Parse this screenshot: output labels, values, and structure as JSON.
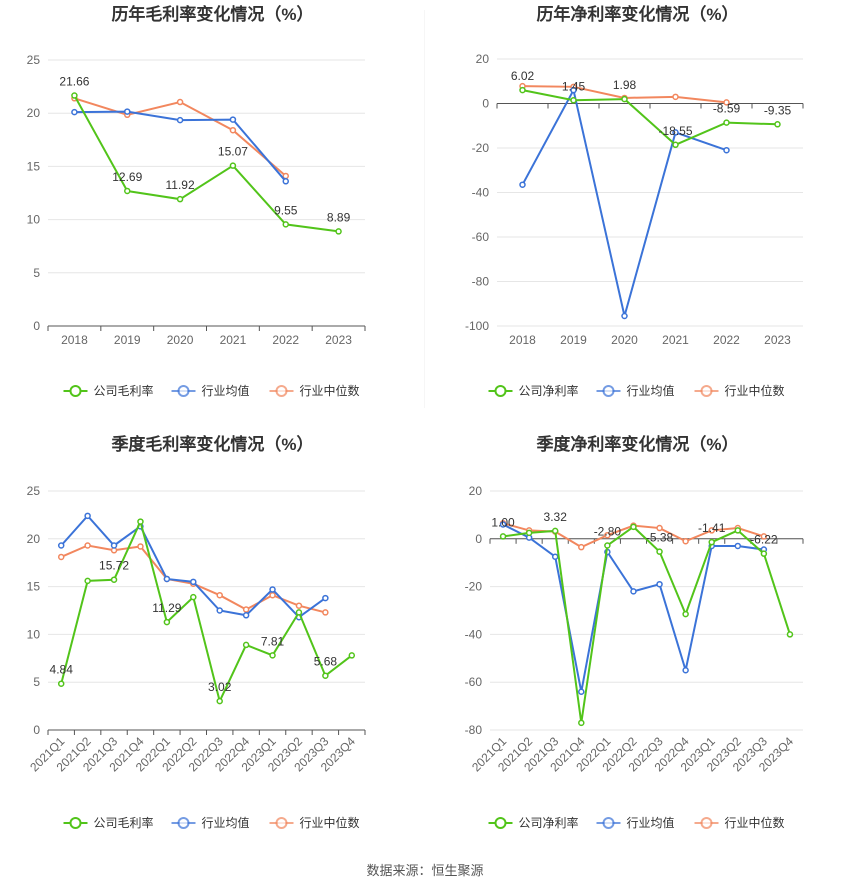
{
  "source": "数据来源：恒生聚源",
  "legend_colors": {
    "company": "#52c41a",
    "avg": "#3b73d8",
    "median": "#f2875e"
  },
  "chart_data": [
    {
      "type": "line",
      "title": "历年毛利率变化情况（%）",
      "categories": [
        "2018",
        "2019",
        "2020",
        "2021",
        "2022",
        "2023"
      ],
      "ylim": [
        0,
        25
      ],
      "yticks": [
        0,
        5,
        10,
        15,
        20,
        25
      ],
      "series": [
        {
          "name": "公司毛利率",
          "values": [
            21.66,
            12.69,
            11.92,
            15.07,
            9.55,
            8.89
          ]
        },
        {
          "name": "行业均值",
          "values": [
            20.1,
            20.15,
            19.35,
            19.4,
            13.6,
            null
          ]
        },
        {
          "name": "行业中位数",
          "values": [
            21.4,
            19.85,
            21.05,
            18.4,
            14.1,
            null
          ]
        }
      ],
      "data_labels": [
        "21.66",
        "12.69",
        "11.92",
        "15.07",
        "9.55",
        "8.89"
      ]
    },
    {
      "type": "line",
      "title": "历年净利率变化情况（%）",
      "categories": [
        "2018",
        "2019",
        "2020",
        "2021",
        "2022",
        "2023"
      ],
      "ylim": [
        -100,
        20
      ],
      "yticks": [
        -100,
        -80,
        -60,
        -40,
        -20,
        0,
        20
      ],
      "series": [
        {
          "name": "公司净利率",
          "values": [
            6.02,
            1.45,
            1.98,
            -18.55,
            -8.59,
            -9.35
          ]
        },
        {
          "name": "行业均值",
          "values": [
            -36.5,
            6.0,
            -95.5,
            -13.0,
            -21.0,
            null
          ]
        },
        {
          "name": "行业中位数",
          "values": [
            7.8,
            7.5,
            2.5,
            3.0,
            0.5,
            null
          ]
        }
      ],
      "data_labels": [
        "6.02",
        "1.45",
        "1.98",
        "-18.55",
        "-8.59",
        "-9.35"
      ]
    },
    {
      "type": "line",
      "title": "季度毛利率变化情况（%）",
      "categories": [
        "2021Q1",
        "2021Q2",
        "2021Q3",
        "2021Q4",
        "2022Q1",
        "2022Q2",
        "2022Q3",
        "2022Q4",
        "2023Q1",
        "2023Q2",
        "2023Q3",
        "2023Q4"
      ],
      "ylim": [
        0,
        25
      ],
      "yticks": [
        0,
        5,
        10,
        15,
        20,
        25
      ],
      "series": [
        {
          "name": "公司毛利率",
          "values": [
            4.84,
            15.6,
            15.72,
            21.8,
            11.29,
            13.9,
            3.02,
            8.9,
            7.81,
            12.3,
            5.68,
            7.8
          ]
        },
        {
          "name": "行业均值",
          "values": [
            19.3,
            22.4,
            19.3,
            21.3,
            15.8,
            15.5,
            12.5,
            12.0,
            14.7,
            11.8,
            13.8,
            null
          ]
        },
        {
          "name": "行业中位数",
          "values": [
            18.1,
            19.3,
            18.8,
            19.2,
            15.8,
            15.3,
            14.1,
            12.6,
            14.1,
            13.0,
            12.3,
            null
          ]
        }
      ],
      "data_labels": [
        "4.84",
        "",
        "15.72",
        "",
        "11.29",
        "",
        "3.02",
        "",
        "7.81",
        "",
        "5.68",
        ""
      ]
    },
    {
      "type": "line",
      "title": "季度净利率变化情况（%）",
      "categories": [
        "2021Q1",
        "2021Q2",
        "2021Q3",
        "2021Q4",
        "2022Q1",
        "2022Q2",
        "2022Q3",
        "2022Q4",
        "2023Q1",
        "2023Q2",
        "2023Q3",
        "2023Q4"
      ],
      "ylim": [
        -80,
        20
      ],
      "yticks": [
        -80,
        -60,
        -40,
        -20,
        0,
        20
      ],
      "series": [
        {
          "name": "公司净利率",
          "values": [
            1.0,
            2.5,
            3.32,
            -77.0,
            -2.8,
            5.0,
            -5.38,
            -31.5,
            -1.41,
            3.5,
            -6.22,
            -40.0
          ]
        },
        {
          "name": "行业均值",
          "values": [
            6.0,
            0.5,
            -7.5,
            -64.0,
            -5.5,
            -22.0,
            -19.0,
            -55.0,
            -3.0,
            -3.0,
            -4.5,
            null
          ]
        },
        {
          "name": "行业中位数",
          "values": [
            6.5,
            3.5,
            3.0,
            -3.5,
            1.5,
            5.5,
            4.5,
            -1.0,
            3.5,
            4.5,
            1.0,
            null
          ]
        }
      ],
      "data_labels": [
        "1.00",
        "",
        "3.32",
        "",
        "-2.80",
        "",
        "-5.38",
        "",
        "-1.41",
        "",
        "-6.22",
        ""
      ]
    }
  ]
}
